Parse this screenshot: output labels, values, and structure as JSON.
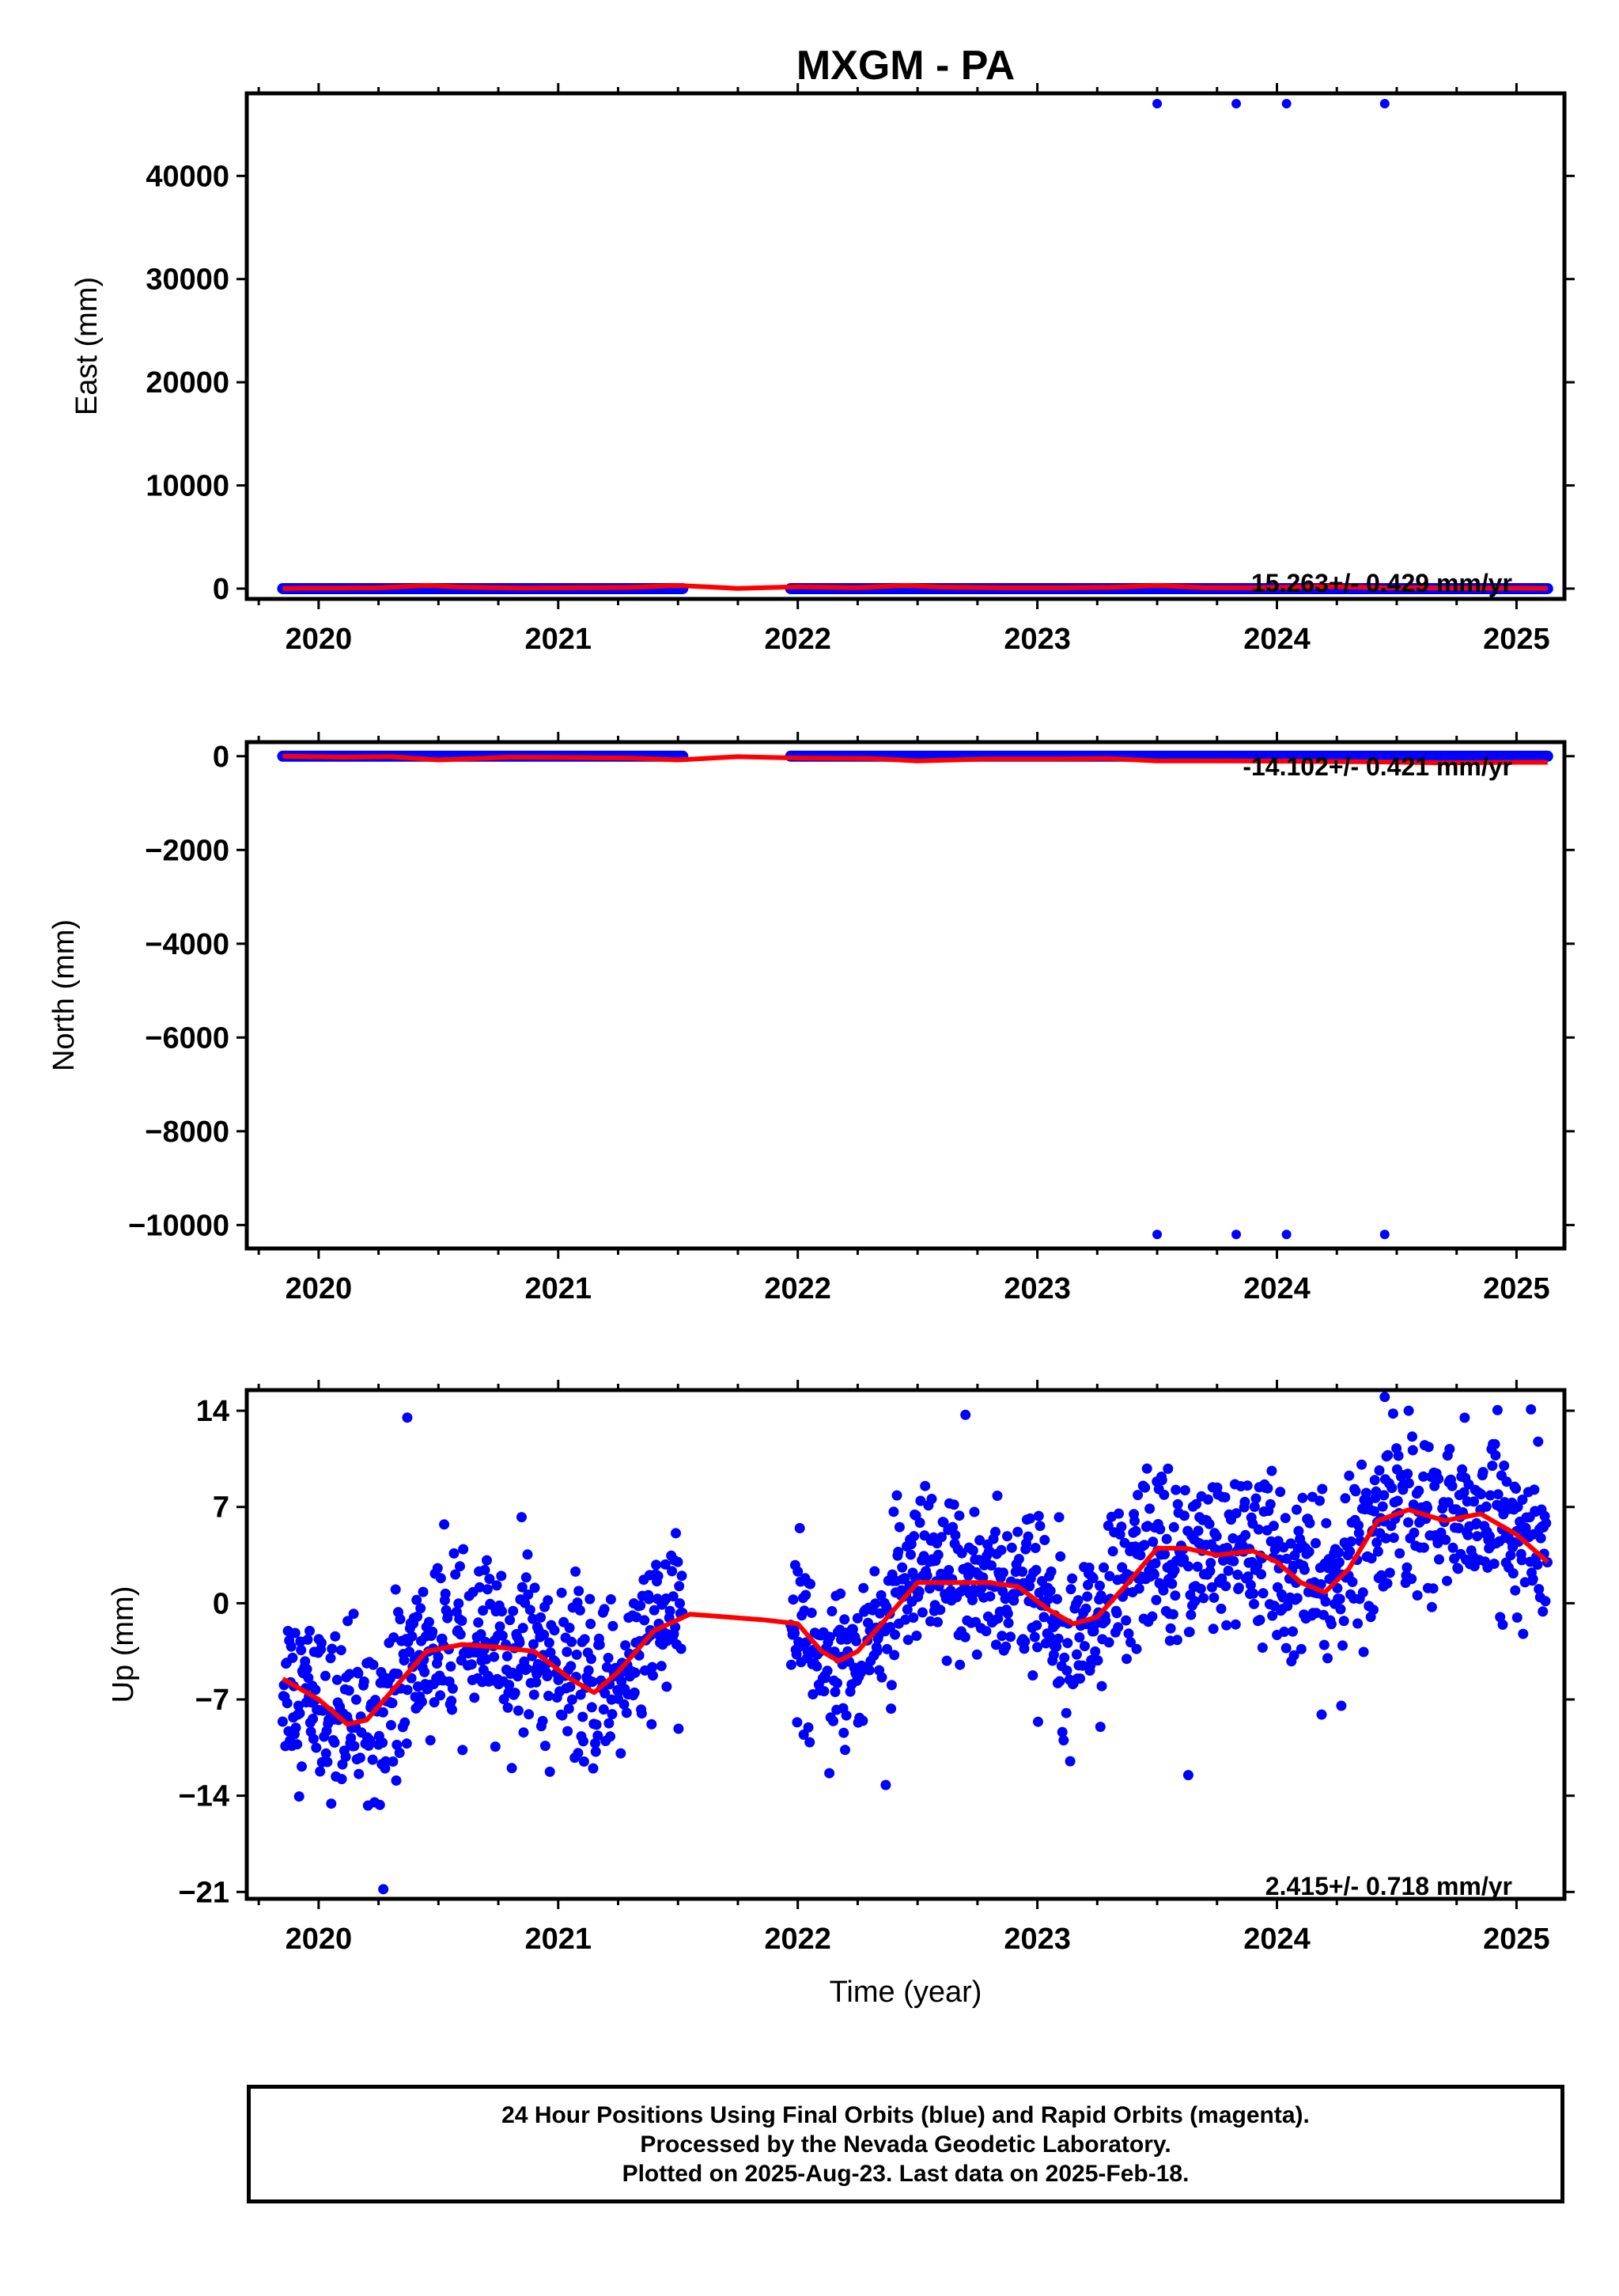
{
  "title": "MXGM - PA",
  "colors": {
    "final": "#0000ff",
    "rapid": "#ff00ff",
    "model": "#ff0000",
    "frame": "#000000"
  },
  "chart_data": [
    {
      "type": "scatter",
      "ylabel": "East (mm)",
      "xlim": [
        2019.7,
        2025.2
      ],
      "ylim": [
        -1000,
        48000
      ],
      "yticks": [
        0,
        10000,
        20000,
        30000,
        40000
      ],
      "ytick_labels": [
        "0",
        "10000",
        "20000",
        "30000",
        "40000"
      ],
      "xticks": [
        2020,
        2021,
        2022,
        2023,
        2024,
        2025
      ],
      "xtick_labels": [
        "2020",
        "2021",
        "2022",
        "2023",
        "2024",
        "2025"
      ],
      "rate_text": "15.263+/- 0.429 mm/yr",
      "series": [
        {
          "name": "final",
          "segments": [
            [
              2019.85,
              2021.52
            ],
            [
              2021.97,
              2025.13
            ]
          ],
          "value": 0
        },
        {
          "name": "outliers",
          "x": [
            2023.5,
            2023.83,
            2024.04,
            2024.45
          ],
          "y": [
            47000,
            47000,
            47000,
            47000
          ]
        },
        {
          "name": "model",
          "x": [
            2019.85,
            2020.1,
            2020.25,
            2020.45,
            2020.6,
            2020.85,
            2021.1,
            2021.3,
            2021.5,
            2021.75,
            2022.0,
            2022.25,
            2022.45,
            2022.6,
            2022.85,
            2023.1,
            2023.3,
            2023.5,
            2023.7,
            2023.95,
            2024.2,
            2024.45,
            2024.7,
            2025.0,
            2025.13
          ],
          "y": [
            20,
            60,
            80,
            300,
            150,
            50,
            100,
            120,
            300,
            20,
            180,
            100,
            300,
            150,
            80,
            80,
            120,
            300,
            100,
            80,
            200,
            80,
            60,
            40,
            30
          ]
        }
      ]
    },
    {
      "type": "scatter",
      "ylabel": "North (mm)",
      "xlim": [
        2019.7,
        2025.2
      ],
      "ylim": [
        -10500,
        300
      ],
      "yticks": [
        0,
        -2000,
        -4000,
        -6000,
        -8000,
        -10000
      ],
      "ytick_labels": [
        "0",
        "−2000",
        "−4000",
        "−6000",
        "−8000",
        "−10000"
      ],
      "xticks": [
        2020,
        2021,
        2022,
        2023,
        2024,
        2025
      ],
      "xtick_labels": [
        "2020",
        "2021",
        "2022",
        "2023",
        "2024",
        "2025"
      ],
      "rate_text": "-14.102+/- 0.421 mm/yr",
      "series": [
        {
          "name": "final",
          "segments": [
            [
              2019.85,
              2021.52
            ],
            [
              2021.97,
              2025.13
            ]
          ],
          "value": 0
        },
        {
          "name": "outliers",
          "x": [
            2023.5,
            2023.83,
            2024.04,
            2024.45
          ],
          "y": [
            -10200,
            -10200,
            -10200,
            -10200
          ]
        },
        {
          "name": "model",
          "x": [
            2019.85,
            2020.1,
            2020.3,
            2020.5,
            2020.8,
            2021.1,
            2021.3,
            2021.5,
            2021.75,
            2022.0,
            2022.3,
            2022.5,
            2022.8,
            2023.1,
            2023.3,
            2023.5,
            2023.8,
            2024.1,
            2024.4,
            2024.7,
            2025.0,
            2025.13
          ],
          "y": [
            0,
            -20,
            -10,
            -80,
            -20,
            -30,
            -40,
            -80,
            -10,
            -40,
            -50,
            -100,
            -60,
            -60,
            -50,
            -100,
            -100,
            -110,
            -120,
            -140,
            -130,
            -130
          ]
        }
      ]
    },
    {
      "type": "scatter",
      "ylabel": "Up (mm)",
      "xlabel": "Time (year)",
      "xlim": [
        2019.7,
        2025.2
      ],
      "ylim": [
        -21.5,
        15.5
      ],
      "yticks": [
        14,
        7,
        0,
        -7,
        -14,
        -21
      ],
      "ytick_labels": [
        "14",
        "7",
        "0",
        "−7",
        "−14",
        "−21"
      ],
      "xticks": [
        2020,
        2021,
        2022,
        2023,
        2024,
        2025
      ],
      "xtick_labels": [
        "2020",
        "2021",
        "2022",
        "2023",
        "2024",
        "2025"
      ],
      "rate_text": "2.415+/- 0.718 mm/yr",
      "series": [
        {
          "name": "final",
          "segments": [
            [
              2019.85,
              2021.52
            ],
            [
              2021.97,
              2025.13
            ]
          ],
          "scatter_sd": 3.0,
          "notable_points": {
            "x": [
              2020.37,
              2020.27,
              2022.7,
              2023.63,
              2024.45,
              2024.55
            ],
            "y": [
              13.5,
              -20.8,
              13.7,
              -12.5,
              15,
              14
            ]
          }
        },
        {
          "name": "model",
          "x": [
            2019.85,
            2020.0,
            2020.12,
            2020.2,
            2020.3,
            2020.45,
            2020.6,
            2020.75,
            2020.9,
            2021.05,
            2021.15,
            2021.25,
            2021.4,
            2021.55,
            2021.7,
            2021.85,
            2022.0,
            2022.1,
            2022.17,
            2022.25,
            2022.35,
            2022.5,
            2022.65,
            2022.8,
            2022.92,
            2023.05,
            2023.15,
            2023.25,
            2023.38,
            2023.5,
            2023.62,
            2023.75,
            2023.9,
            2024.0,
            2024.1,
            2024.2,
            2024.3,
            2024.42,
            2024.55,
            2024.7,
            2024.85,
            2025.0,
            2025.13
          ],
          "y": [
            -5.5,
            -7,
            -8.8,
            -8.5,
            -6.5,
            -3.5,
            -3.0,
            -3.2,
            -3.5,
            -5.5,
            -6.5,
            -5,
            -2,
            -0.8,
            -1,
            -1.2,
            -1.5,
            -3.5,
            -4.2,
            -3.5,
            -1.5,
            1.5,
            1.5,
            1.5,
            1.2,
            -0.5,
            -1.5,
            -1.0,
            1.5,
            4.0,
            4.0,
            3.5,
            3.8,
            3.0,
            1.5,
            0.8,
            2.5,
            6.0,
            6.8,
            6.0,
            6.5,
            5.0,
            3.0
          ]
        }
      ]
    }
  ],
  "footer": {
    "line1": "24 Hour Positions Using Final Orbits (blue) and Rapid Orbits (magenta).",
    "line2": "Processed by the Nevada Geodetic Laboratory.",
    "line3": "Plotted on 2025-Aug-23. Last data on 2025-Feb-18."
  }
}
